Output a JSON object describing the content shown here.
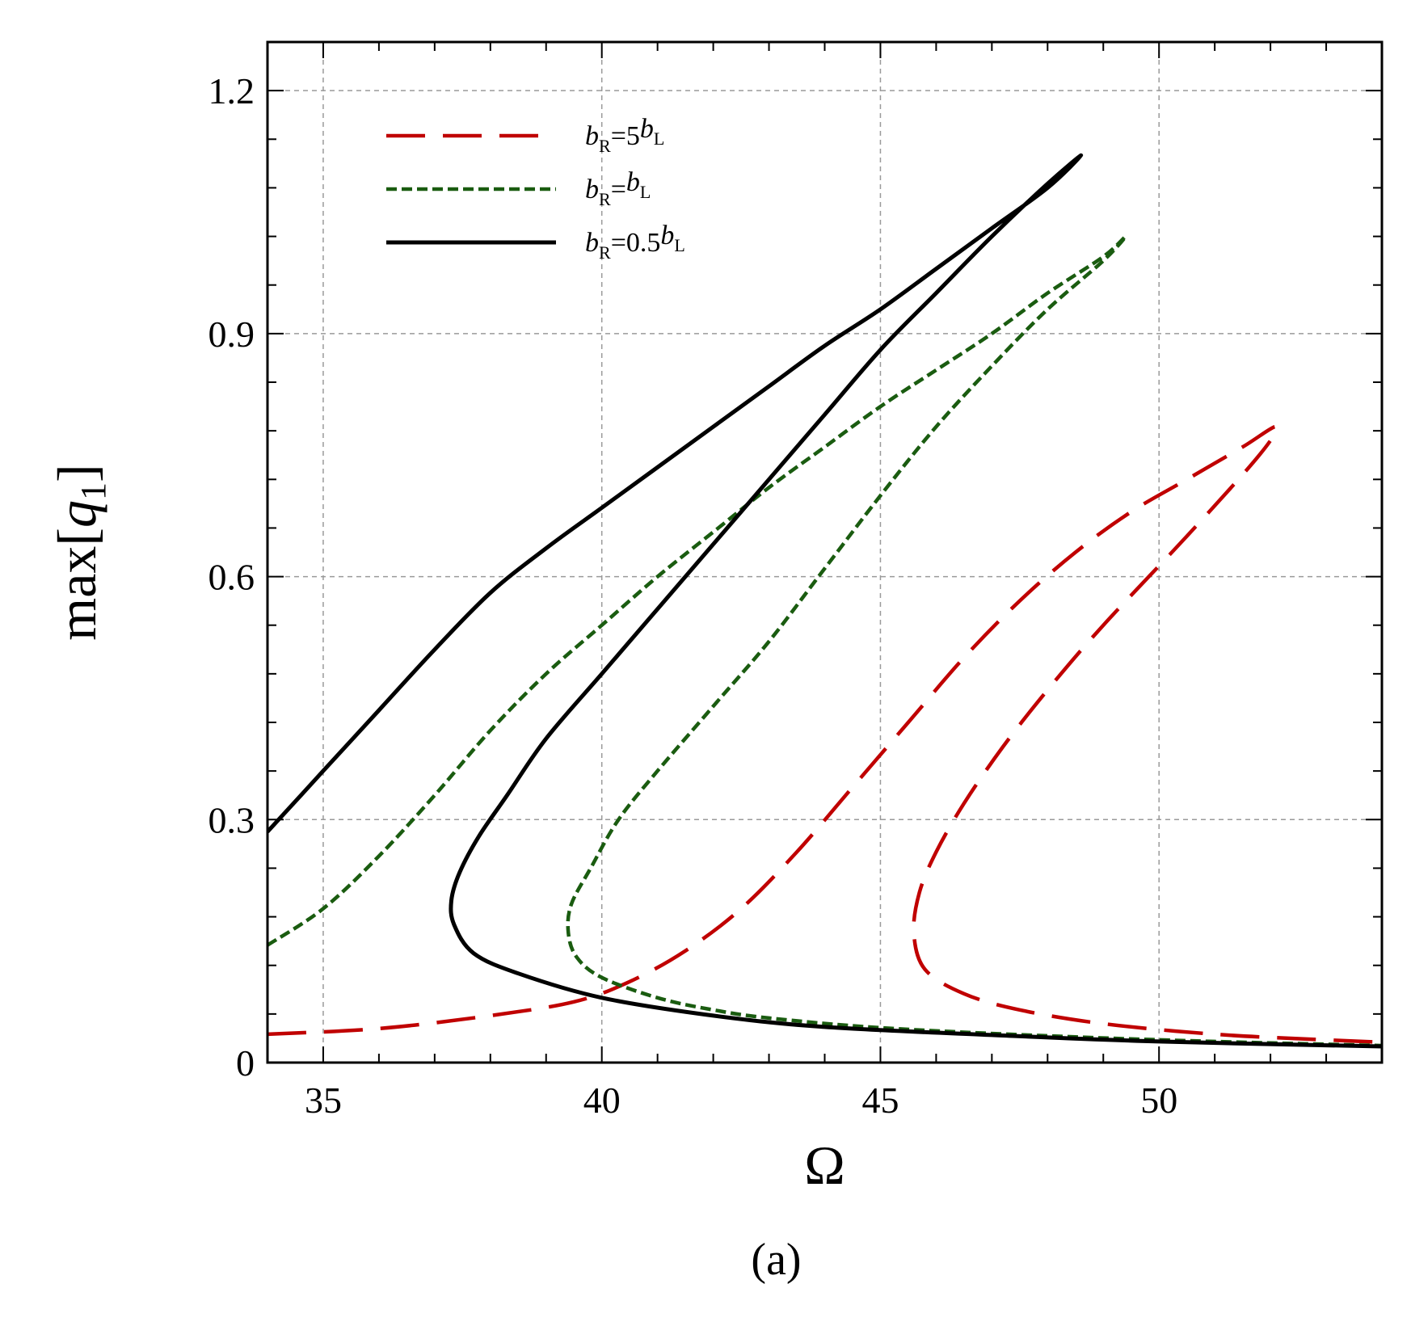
{
  "chart_data": {
    "type": "line",
    "title": "",
    "xlabel": "Ω",
    "ylabel": {
      "prefix": "max[",
      "var": "q",
      "sub": "1",
      "suffix": "]"
    },
    "caption": "(a)",
    "xlim": [
      34,
      54
    ],
    "ylim": [
      0,
      1.26
    ],
    "xticks": [
      35,
      40,
      45,
      50
    ],
    "xtick_labels": [
      "35",
      "40",
      "45",
      "50"
    ],
    "yticks": [
      0,
      0.3,
      0.6,
      0.9,
      1.2
    ],
    "ytick_labels": [
      "0",
      "0.3",
      "0.6",
      "0.9",
      "1.2"
    ],
    "grid": true,
    "legend_position": "top-left",
    "series": [
      {
        "name": "bR=5bL",
        "legend": {
          "v1": "b",
          "s1": "R",
          "mid": "=5",
          "v2": "b",
          "s2": "L"
        },
        "color": "#c00000",
        "style": "long-dash",
        "x": [
          34.0,
          36.0,
          38.0,
          39.5,
          40.5,
          41.5,
          42.5,
          43.5,
          44.5,
          45.5,
          46.5,
          47.5,
          48.5,
          49.5,
          50.5,
          51.5,
          52.1,
          51.8,
          50.5,
          49.0,
          48.0,
          47.2,
          46.5,
          46.0,
          45.7,
          45.6,
          45.8,
          46.5,
          47.5,
          49.0,
          51.0,
          53.0,
          54.0
        ],
        "y": [
          0.035,
          0.042,
          0.058,
          0.075,
          0.1,
          0.138,
          0.19,
          0.26,
          0.34,
          0.42,
          0.5,
          0.57,
          0.63,
          0.68,
          0.72,
          0.76,
          0.785,
          0.75,
          0.65,
          0.54,
          0.46,
          0.39,
          0.32,
          0.26,
          0.21,
          0.16,
          0.115,
          0.085,
          0.065,
          0.048,
          0.035,
          0.028,
          0.025
        ]
      },
      {
        "name": "bR=bL",
        "legend": {
          "v1": "b",
          "s1": "R",
          "mid": "=",
          "v2": "b",
          "s2": "L"
        },
        "color": "#1a5c10",
        "style": "short-dash",
        "x": [
          34.0,
          35.0,
          36.0,
          37.0,
          38.0,
          39.0,
          40.0,
          41.0,
          42.0,
          43.0,
          44.0,
          45.0,
          46.0,
          47.0,
          48.0,
          49.0,
          49.4,
          49.0,
          48.0,
          47.0,
          46.0,
          45.0,
          44.0,
          43.0,
          42.0,
          41.0,
          40.3,
          39.8,
          39.45,
          39.4,
          39.55,
          40.0,
          41.0,
          42.0,
          43.0,
          45.0,
          48.0,
          51.0,
          54.0
        ],
        "y": [
          0.145,
          0.19,
          0.255,
          0.33,
          0.41,
          0.48,
          0.54,
          0.6,
          0.655,
          0.71,
          0.76,
          0.81,
          0.855,
          0.9,
          0.95,
          0.995,
          1.02,
          0.99,
          0.93,
          0.86,
          0.785,
          0.7,
          0.61,
          0.52,
          0.44,
          0.36,
          0.3,
          0.24,
          0.195,
          0.16,
          0.13,
          0.105,
          0.08,
          0.065,
          0.055,
          0.043,
          0.033,
          0.026,
          0.021
        ]
      },
      {
        "name": "bR=0.5bL",
        "legend": {
          "v1": "b",
          "s1": "R",
          "mid": "=0.5",
          "v2": "b",
          "s2": "L"
        },
        "color": "#000000",
        "style": "solid",
        "x": [
          34.0,
          35.0,
          36.0,
          37.0,
          38.0,
          39.0,
          40.0,
          41.0,
          42.0,
          43.0,
          44.0,
          45.0,
          46.0,
          47.0,
          48.0,
          48.6,
          48.0,
          47.0,
          46.0,
          45.0,
          44.0,
          43.0,
          42.0,
          41.0,
          40.0,
          39.0,
          38.3,
          37.8,
          37.45,
          37.3,
          37.35,
          37.7,
          38.5,
          40.0,
          42.0,
          44.0,
          47.0,
          50.0,
          54.0
        ],
        "y": [
          0.285,
          0.36,
          0.435,
          0.51,
          0.58,
          0.635,
          0.685,
          0.735,
          0.785,
          0.835,
          0.885,
          0.93,
          0.98,
          1.03,
          1.08,
          1.12,
          1.085,
          1.02,
          0.95,
          0.88,
          0.8,
          0.72,
          0.64,
          0.56,
          0.48,
          0.4,
          0.33,
          0.28,
          0.235,
          0.2,
          0.17,
          0.135,
          0.11,
          0.08,
          0.058,
          0.044,
          0.034,
          0.026,
          0.02
        ]
      }
    ]
  }
}
